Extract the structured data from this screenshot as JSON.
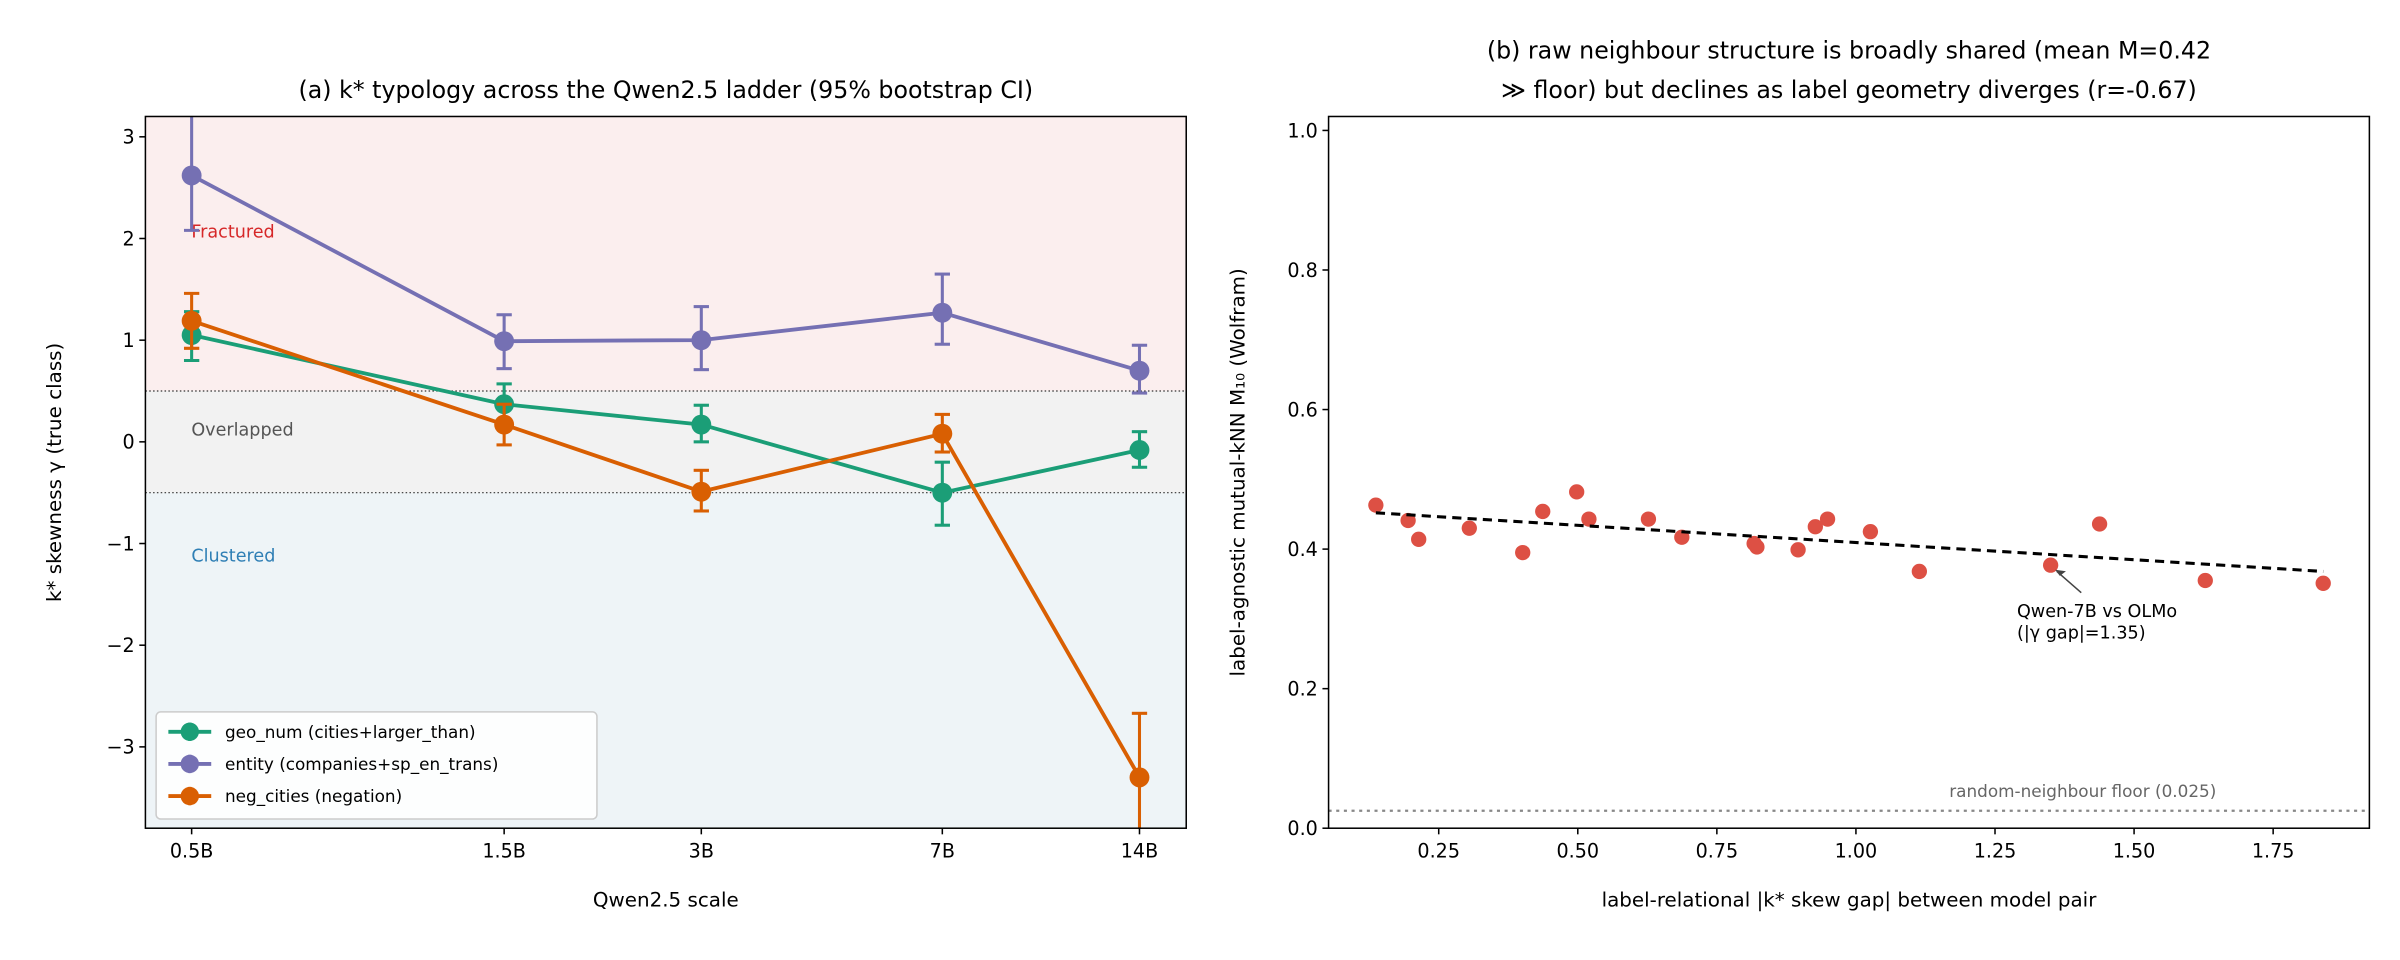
{
  "chart_data": [
    {
      "type": "line",
      "title": "(a) k* typology across the Qwen2.5 ladder (95% bootstrap CI)",
      "x_label": "Qwen2.5 scale",
      "y_label": "k* skewness γ (true class)",
      "x": [
        0.5,
        1.5,
        3,
        7,
        14
      ],
      "xscale": "log",
      "xlim": [
        0.425,
        16.5
      ],
      "xticks": [
        {
          "value": 0.5,
          "label": "0.5B"
        },
        {
          "value": 1.5,
          "label": "1.5B"
        },
        {
          "value": 3,
          "label": "3B"
        },
        {
          "value": 7,
          "label": "7B"
        },
        {
          "value": 14,
          "label": "14B"
        }
      ],
      "ylim": [
        -3.8,
        3.2
      ],
      "yticks": [
        {
          "value": -3,
          "label": "−3"
        },
        {
          "value": -2,
          "label": "−2"
        },
        {
          "value": -1,
          "label": "−1"
        },
        0,
        1,
        2,
        3
      ],
      "thresholds": [
        -0.5,
        0.5
      ],
      "regions": [
        {
          "label": "Clustered",
          "color": "#eef4f7",
          "label_color": "#2f7fb5"
        },
        {
          "label": "Overlapped",
          "color": "#f2f2f2",
          "label_color": "#555555"
        },
        {
          "label": "Fractured",
          "color": "#fbeeee",
          "label_color": "#d62728"
        }
      ],
      "legend": "lower left",
      "series": [
        {
          "name": "geo_num (cities+larger_than)",
          "color": "#1b9e77",
          "values": [
            1.05,
            0.37,
            0.17,
            -0.5,
            -0.08
          ],
          "lower": [
            0.8,
            0.17,
            0.0,
            -0.82,
            -0.25
          ],
          "upper": [
            1.28,
            0.57,
            0.36,
            -0.2,
            0.1
          ]
        },
        {
          "name": "entity (companies+sp_en_trans)",
          "color": "#7570b3",
          "values": [
            2.62,
            0.99,
            1.0,
            1.27,
            0.7
          ],
          "lower": [
            2.08,
            0.72,
            0.71,
            0.96,
            0.48
          ],
          "upper": [
            3.4,
            1.25,
            1.33,
            1.65,
            0.95
          ]
        },
        {
          "name": "neg_cities (negation)",
          "color": "#d95f02",
          "values": [
            1.19,
            0.17,
            -0.49,
            0.08,
            -3.3
          ],
          "lower": [
            0.92,
            -0.03,
            -0.68,
            -0.1,
            -3.82
          ],
          "upper": [
            1.46,
            0.37,
            -0.28,
            0.27,
            -2.67
          ]
        }
      ]
    },
    {
      "type": "scatter",
      "title": [
        "(b) raw neighbour structure is broadly shared (mean M=0.42",
        "≫ floor) but declines as label geometry diverges (r=-0.67)"
      ],
      "x_label": "label-relational |k* skew gap| between model pair",
      "y_label": "label-agnostic mutual-kNN M₁₀ (Wolfram)",
      "xlim": [
        0.052,
        1.923
      ],
      "ylim": [
        0,
        1.02
      ],
      "xticks": [
        0.25,
        {
          "value": 0.5,
          "label": "0.50"
        },
        0.75,
        {
          "value": 1.0,
          "label": "1.00"
        },
        1.25,
        {
          "value": 1.5,
          "label": "1.50"
        },
        1.75
      ],
      "yticks": [
        {
          "value": 0,
          "label": "0.0"
        },
        0.2,
        0.4,
        0.6,
        0.8,
        {
          "value": 1.0,
          "label": "1.0"
        }
      ],
      "color": "#dd5044",
      "x": [
        0.137,
        0.195,
        0.214,
        0.305,
        0.401,
        0.437,
        0.498,
        0.52,
        0.627,
        0.687,
        0.817,
        0.822,
        0.896,
        0.927,
        0.949,
        1.026,
        1.114,
        1.35,
        1.438,
        1.628,
        1.84
      ],
      "y": [
        0.463,
        0.441,
        0.414,
        0.43,
        0.395,
        0.454,
        0.482,
        0.443,
        0.443,
        0.417,
        0.408,
        0.403,
        0.399,
        0.432,
        0.443,
        0.425,
        0.368,
        0.377,
        0.436,
        0.355,
        0.351
      ],
      "trend": {
        "x": [
          0.137,
          1.84
        ],
        "y": [
          0.452,
          0.368
        ]
      },
      "floor": {
        "value": 0.025,
        "label": "random-neighbour floor (0.025)"
      },
      "annotation": {
        "x": 1.35,
        "y": 0.377,
        "lines": [
          "Qwen-7B vs OLMo",
          "(|γ gap|=1.35)"
        ]
      }
    }
  ]
}
